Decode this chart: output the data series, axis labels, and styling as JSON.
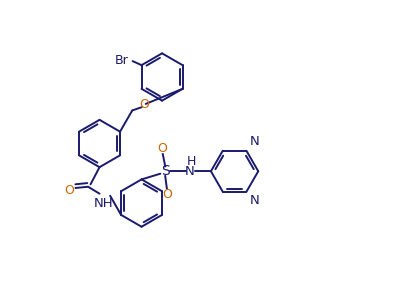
{
  "bg_color": "#ffffff",
  "line_color": "#1a1a6e",
  "o_color": "#cc6600",
  "n_color": "#1a1a6e",
  "bond_lw": 1.4,
  "figsize": [
    3.99,
    2.87
  ],
  "dpi": 100,
  "xlim": [
    0,
    9.5
  ],
  "ylim": [
    0,
    7.0
  ]
}
